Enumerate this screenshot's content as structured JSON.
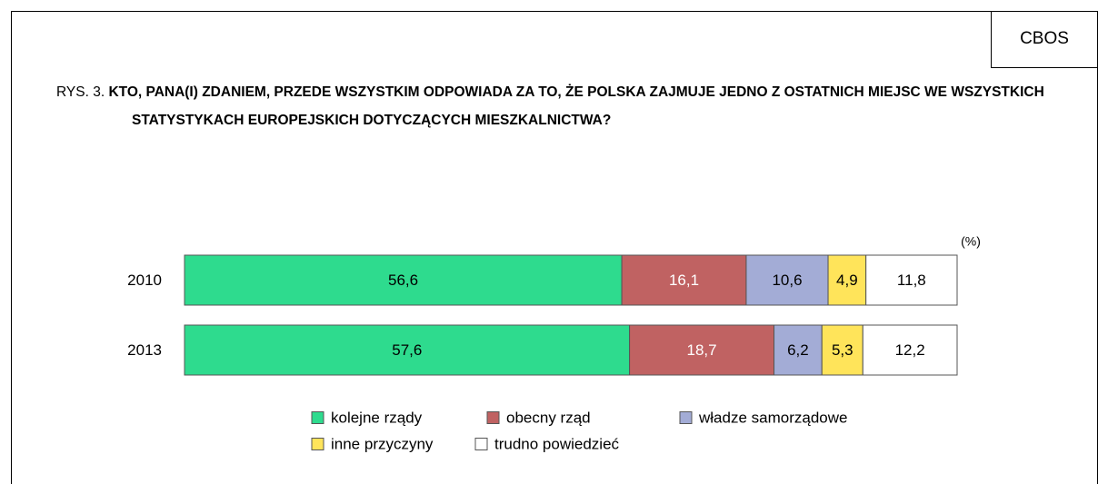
{
  "chart_data": {
    "type": "stacked-bar-horizontal",
    "source": "CBOS",
    "figure_label": "RYS. 3.",
    "title": "KTO, PANA(I) ZDANIEM, PRZEDE WSZYSTKIM ODPOWIADA ZA TO, ŻE POLSKA ZAJMUJE JEDNO Z OSTATNICH MIEJSC WE WSZYSTKICH STATYSTYKACH EUROPEJSKICH DOTYCZĄCYCH MIESZKALNICTWA?",
    "unit_label": "(%)",
    "categories": [
      "2010",
      "2013"
    ],
    "xlim": [
      0,
      100
    ],
    "series": [
      {
        "name": "kolejne rządy",
        "color": "#2edb8e",
        "label_color": "#000000",
        "values": [
          56.6,
          57.6
        ],
        "value_labels": [
          "56,6",
          "57,6"
        ]
      },
      {
        "name": "obecny rząd",
        "color": "#c06262",
        "label_color": "#ffffff",
        "values": [
          16.1,
          18.7
        ],
        "value_labels": [
          "16,1",
          "18,7"
        ]
      },
      {
        "name": "władze samorządowe",
        "color": "#a3acd6",
        "label_color": "#000000",
        "values": [
          10.6,
          6.2
        ],
        "value_labels": [
          "10,6",
          "6,2"
        ]
      },
      {
        "name": "inne przyczyny",
        "color": "#ffe45a",
        "label_color": "#000000",
        "values": [
          4.9,
          5.3
        ],
        "value_labels": [
          "4,9",
          "5,3"
        ]
      },
      {
        "name": "trudno powiedzieć",
        "color": "#ffffff",
        "label_color": "#000000",
        "values": [
          11.8,
          12.2
        ],
        "value_labels": [
          "11,8",
          "12,2"
        ]
      }
    ]
  }
}
